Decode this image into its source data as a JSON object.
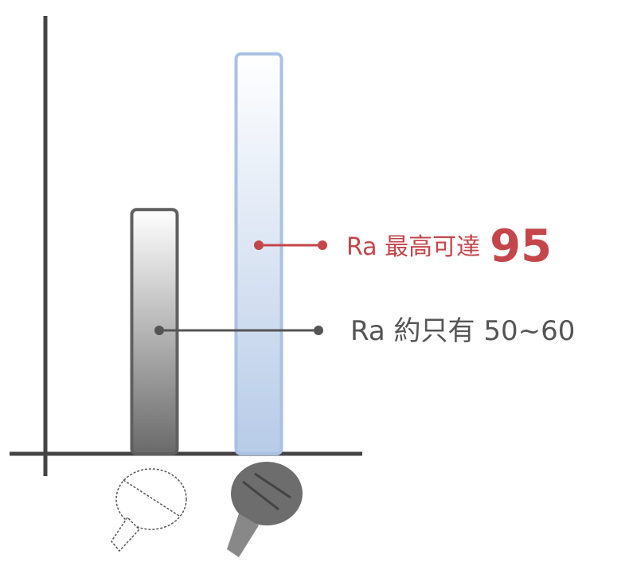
{
  "chart_data": {
    "type": "bar",
    "categories": [
      null,
      null
    ],
    "values": [
      58,
      95
    ],
    "colors": [
      "#5f5f5f",
      "#a9c1e3"
    ],
    "ylim": [
      0,
      104
    ],
    "annotations": [
      {
        "label": "Ra 約只有 50~60",
        "color": "#555555"
      },
      {
        "label": "Ra 最高可達",
        "emphasis": "95",
        "color": "#c4454a"
      }
    ]
  }
}
